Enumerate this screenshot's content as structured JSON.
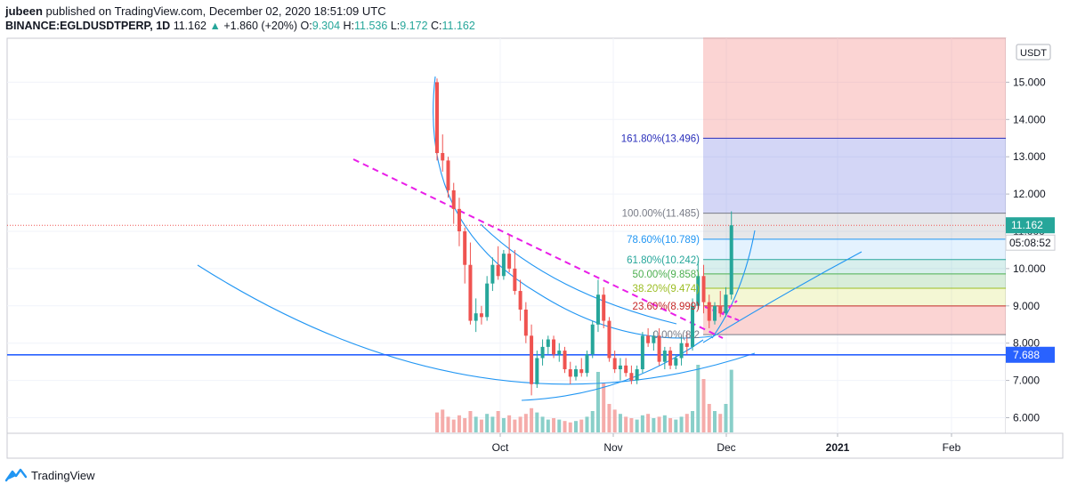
{
  "header": {
    "author": "jubeen",
    "published": "published on TradingView.com, December 02, 2020 18:51:09 UTC",
    "symbol": "BINANCE:EGLDUSDTPERP, 1D",
    "last": "11.162",
    "change": "+1.860 (+20%)",
    "o_label": "O:",
    "o_val": "9.304",
    "h_label": "H:",
    "h_val": "11.536",
    "l_label": "L:",
    "l_val": "9.172",
    "c_label": "C:",
    "c_val": "11.162"
  },
  "footer": {
    "brand": "TradingView"
  },
  "colors": {
    "up": "#26a69a",
    "down": "#ef5350",
    "vol_up": "#7ccac3",
    "vol_down": "#f4a3a1",
    "trend": "#2196f3",
    "dashed": "#e91ee8",
    "support": "#2962ff",
    "fib_161": "#2a2fbb",
    "fib_100": "#787b86",
    "fib_786": "#2196f3",
    "fib_618": "#26a69a",
    "fib_50": "#4caf50",
    "fib_382": "#9bbd22",
    "fib_236": "#c62828"
  },
  "chart_data": {
    "type": "candlestick",
    "currency": "USDT",
    "y_ticks": [
      "6.000",
      "7.000",
      "8.000",
      "9.000",
      "10.000",
      "11.000",
      "12.000",
      "13.000",
      "14.000",
      "15.000"
    ],
    "x_ticks": [
      "Oct",
      "Nov",
      "Dec",
      "2021",
      "Feb"
    ],
    "ylim": [
      5.6,
      15.6
    ],
    "current_price": "11.162",
    "countdown": "05:08:52",
    "support_level": "7.688",
    "fib_levels": [
      {
        "label": "161.80%(13.496)",
        "value": 13.496
      },
      {
        "label": "100.00%(11.485)",
        "value": 11.485
      },
      {
        "label": "78.60%(10.789)",
        "value": 10.789
      },
      {
        "label": "61.80%(10.242)",
        "value": 10.242
      },
      {
        "label": "50.00%(9.858)",
        "value": 9.858
      },
      {
        "label": "38.20%(9.474)",
        "value": 9.474
      },
      {
        "label": "23.60%(8.999)",
        "value": 8.999
      },
      {
        "label": "0.00%(8.2",
        "value": 8.23
      }
    ],
    "candles": [
      [
        15.0,
        15.1,
        12.9,
        13.1
      ],
      [
        13.1,
        13.6,
        12.6,
        12.9
      ],
      [
        12.9,
        13.0,
        11.9,
        12.1
      ],
      [
        12.1,
        12.3,
        11.2,
        11.6
      ],
      [
        11.6,
        11.9,
        10.6,
        11.0
      ],
      [
        11.0,
        11.1,
        9.6,
        10.1
      ],
      [
        10.1,
        10.7,
        8.5,
        8.6
      ],
      [
        8.6,
        9.2,
        8.3,
        8.8
      ],
      [
        8.8,
        9.0,
        8.5,
        8.7
      ],
      [
        8.7,
        9.8,
        8.6,
        9.6
      ],
      [
        9.6,
        10.3,
        9.4,
        10.1
      ],
      [
        10.1,
        10.6,
        9.7,
        9.8
      ],
      [
        9.8,
        10.5,
        9.7,
        10.4
      ],
      [
        10.4,
        10.9,
        9.9,
        10.0
      ],
      [
        10.0,
        10.5,
        9.3,
        9.4
      ],
      [
        9.4,
        9.7,
        8.6,
        8.9
      ],
      [
        8.9,
        9.1,
        8.0,
        8.2
      ],
      [
        8.2,
        8.5,
        6.6,
        6.9
      ],
      [
        6.9,
        7.8,
        6.8,
        7.6
      ],
      [
        7.6,
        8.1,
        7.4,
        7.9
      ],
      [
        7.9,
        8.2,
        7.7,
        8.1
      ],
      [
        8.1,
        8.2,
        7.6,
        7.7
      ],
      [
        7.7,
        8.0,
        7.5,
        7.8
      ],
      [
        7.8,
        7.9,
        7.2,
        7.3
      ],
      [
        7.3,
        7.5,
        6.9,
        7.1
      ],
      [
        7.1,
        7.4,
        7.0,
        7.3
      ],
      [
        7.3,
        7.6,
        7.1,
        7.2
      ],
      [
        7.2,
        7.8,
        7.1,
        7.7
      ],
      [
        7.7,
        8.6,
        7.6,
        8.5
      ],
      [
        8.5,
        9.7,
        8.3,
        9.3
      ],
      [
        9.3,
        9.5,
        8.4,
        8.6
      ],
      [
        8.6,
        8.7,
        7.5,
        7.6
      ],
      [
        7.6,
        7.8,
        7.2,
        7.3
      ],
      [
        7.3,
        7.6,
        7.0,
        7.4
      ],
      [
        7.4,
        7.6,
        7.1,
        7.2
      ],
      [
        7.2,
        7.4,
        6.9,
        7.0
      ],
      [
        7.0,
        7.4,
        6.9,
        7.3
      ],
      [
        7.3,
        8.3,
        7.2,
        8.2
      ],
      [
        8.2,
        8.4,
        7.9,
        8.0
      ],
      [
        8.0,
        8.3,
        7.8,
        8.2
      ],
      [
        8.2,
        8.4,
        7.4,
        7.5
      ],
      [
        7.5,
        7.9,
        7.3,
        7.8
      ],
      [
        7.8,
        7.9,
        7.3,
        7.4
      ],
      [
        7.4,
        7.7,
        7.3,
        7.6
      ],
      [
        7.6,
        8.2,
        7.4,
        8.0
      ],
      [
        8.0,
        8.3,
        7.7,
        7.9
      ],
      [
        7.9,
        9.2,
        7.8,
        9.0
      ],
      [
        9.0,
        10.2,
        8.9,
        9.8
      ],
      [
        9.8,
        10.1,
        8.8,
        9.1
      ],
      [
        9.1,
        9.3,
        8.4,
        8.6
      ],
      [
        8.6,
        9.1,
        8.5,
        9.0
      ],
      [
        9.0,
        9.4,
        8.7,
        8.8
      ],
      [
        8.8,
        9.5,
        8.7,
        9.3
      ],
      [
        9.304,
        11.536,
        9.172,
        11.162
      ]
    ],
    "volumes": [
      28,
      32,
      22,
      18,
      24,
      20,
      30,
      22,
      18,
      26,
      22,
      30,
      20,
      24,
      18,
      22,
      26,
      34,
      28,
      22,
      18,
      20,
      18,
      16,
      14,
      16,
      18,
      22,
      30,
      85,
      70,
      40,
      32,
      26,
      22,
      20,
      18,
      24,
      26,
      20,
      22,
      24,
      20,
      18,
      22,
      26,
      30,
      95,
      75,
      40,
      30,
      26,
      40,
      88
    ]
  }
}
